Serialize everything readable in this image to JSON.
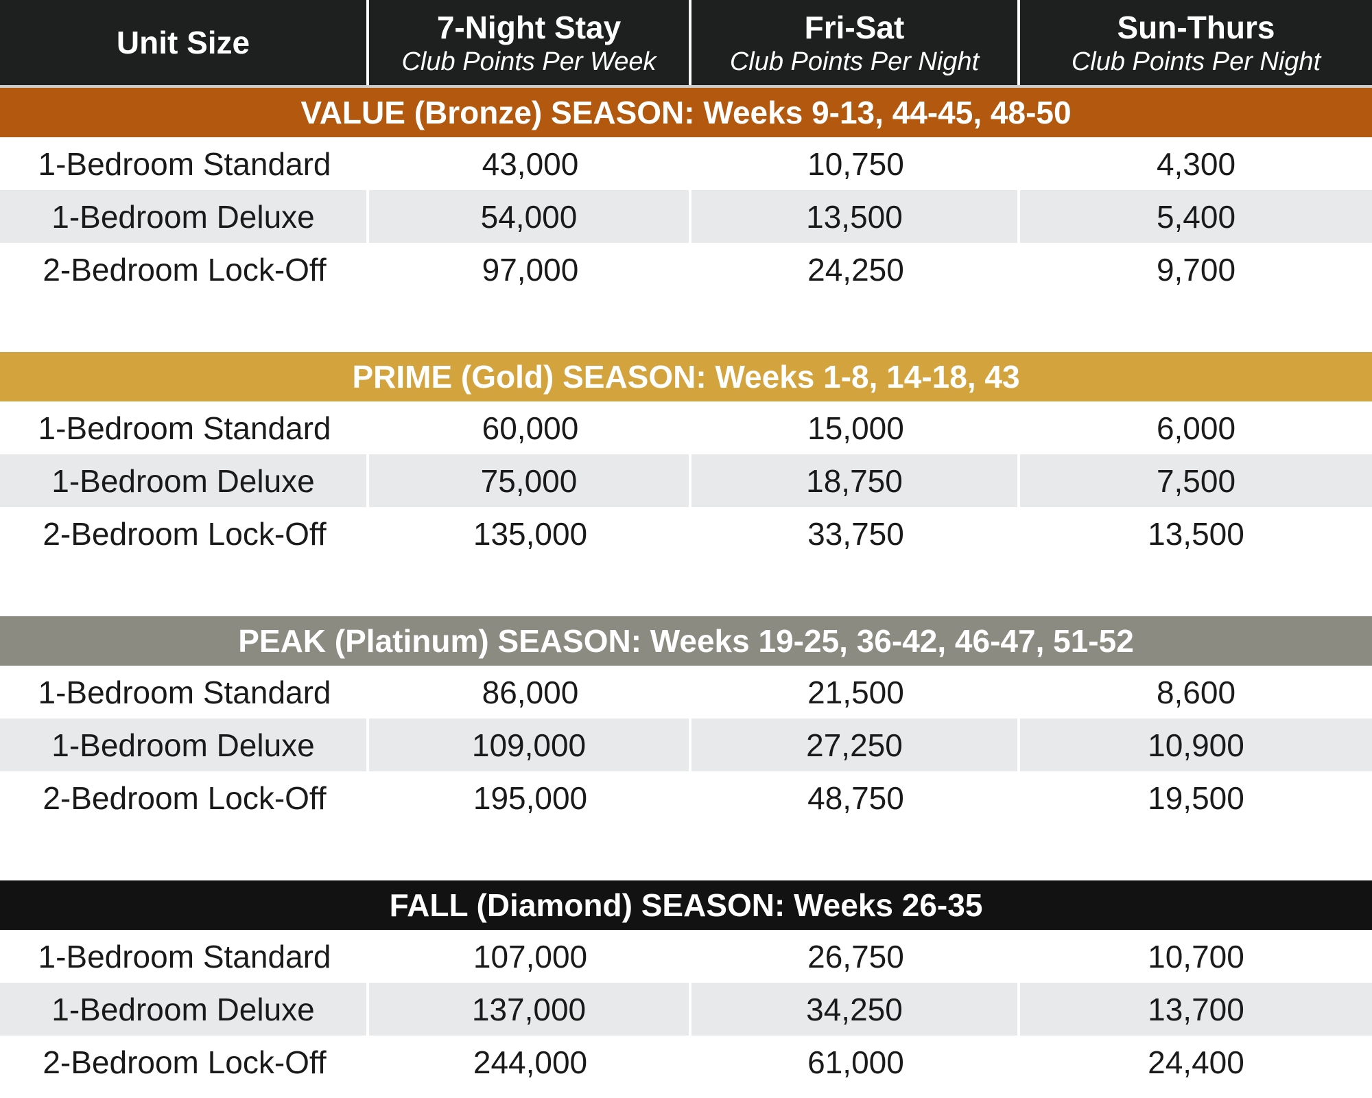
{
  "header": [
    {
      "title": "Unit Size"
    },
    {
      "title": "7-Night Stay",
      "subtitle": "Club Points Per Week"
    },
    {
      "title": "Fri-Sat",
      "subtitle": "Club Points Per Night"
    },
    {
      "title": "Sun-Thurs",
      "subtitle": "Club Points Per Night"
    }
  ],
  "sections": [
    {
      "title": "VALUE (Bronze) SEASON: Weeks 9-13, 44-45, 48-50",
      "color": "#b3590f",
      "rows": [
        [
          "1-Bedroom Standard",
          "43,000",
          "10,750",
          "4,300"
        ],
        [
          "1-Bedroom Deluxe",
          "54,000",
          "13,500",
          "5,400"
        ],
        [
          "2-Bedroom Lock-Off",
          "97,000",
          "24,250",
          "9,700"
        ]
      ]
    },
    {
      "title": "PRIME (Gold) SEASON: Weeks 1-8, 14-18, 43",
      "color": "#d3a33e",
      "rows": [
        [
          "1-Bedroom Standard",
          "60,000",
          "15,000",
          "6,000"
        ],
        [
          "1-Bedroom Deluxe",
          "75,000",
          "18,750",
          "7,500"
        ],
        [
          "2-Bedroom Lock-Off",
          "135,000",
          "33,750",
          "13,500"
        ]
      ]
    },
    {
      "title": "PEAK (Platinum) SEASON: Weeks 19-25, 36-42, 46-47, 51-52",
      "color": "#8b8b82",
      "rows": [
        [
          "1-Bedroom Standard",
          "86,000",
          "21,500",
          "8,600"
        ],
        [
          "1-Bedroom Deluxe",
          "109,000",
          "27,250",
          "10,900"
        ],
        [
          "2-Bedroom Lock-Off",
          "195,000",
          "48,750",
          "19,500"
        ]
      ]
    },
    {
      "title": "FALL (Diamond) SEASON: Weeks 26-35",
      "color": "#121212",
      "rows": [
        [
          "1-Bedroom Standard",
          "107,000",
          "26,750",
          "10,700"
        ],
        [
          "1-Bedroom Deluxe",
          "137,000",
          "34,250",
          "13,700"
        ],
        [
          "2-Bedroom Lock-Off",
          "244,000",
          "61,000",
          "24,400"
        ]
      ]
    }
  ]
}
